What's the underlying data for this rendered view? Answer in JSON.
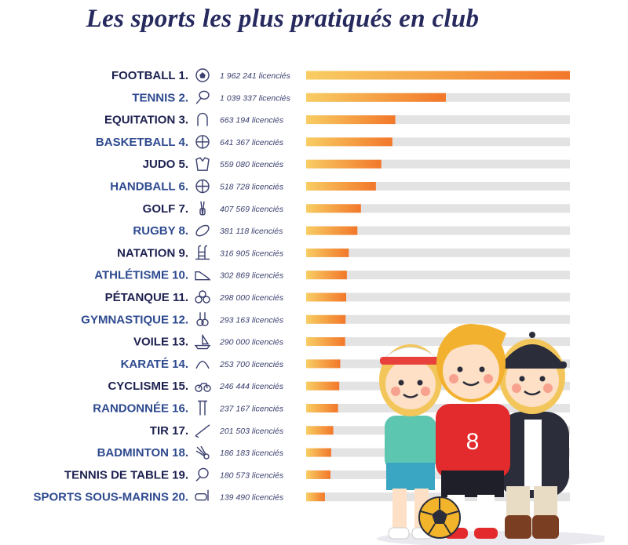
{
  "title": "Les sports les plus pratiqués en club",
  "colors": {
    "title": "#262a5e",
    "label_dark": "#1d2150",
    "label_blue": "#2e4a8f",
    "bar_track": "#e3e3e3",
    "bar_start": "#f8cd63",
    "bar_end": "#f2772a"
  },
  "chart_data": {
    "type": "bar",
    "orientation": "horizontal",
    "unit": "licenciés",
    "grid": false,
    "legend": "none",
    "xlim": [
      0,
      1962241
    ],
    "rows": [
      {
        "rank": "1.",
        "name": "FOOTBALL",
        "value": 1962241,
        "value_label": "1 962 241 licenciés",
        "icon": "football-icon",
        "style": "dark"
      },
      {
        "rank": "2.",
        "name": "TENNIS",
        "value": 1039337,
        "value_label": "1 039 337 licenciés",
        "icon": "tennis-racket-icon",
        "style": "blue"
      },
      {
        "rank": "3.",
        "name": "EQUITATION",
        "value": 663194,
        "value_label": "663 194 licenciés",
        "icon": "horseshoe-icon",
        "style": "dark"
      },
      {
        "rank": "4.",
        "name": "BASKETBALL",
        "value": 641367,
        "value_label": "641 367 licenciés",
        "icon": "basketball-icon",
        "style": "blue"
      },
      {
        "rank": "5.",
        "name": "JUDO",
        "value": 559080,
        "value_label": "559 080 licenciés",
        "icon": "judo-gi-icon",
        "style": "dark"
      },
      {
        "rank": "6.",
        "name": "HANDBALL",
        "value": 518728,
        "value_label": "518 728 licenciés",
        "icon": "handball-icon",
        "style": "blue"
      },
      {
        "rank": "7.",
        "name": "GOLF",
        "value": 407569,
        "value_label": "407 569 licenciés",
        "icon": "golf-bag-icon",
        "style": "dark"
      },
      {
        "rank": "8.",
        "name": "RUGBY",
        "value": 381118,
        "value_label": "381 118 licenciés",
        "icon": "rugby-ball-icon",
        "style": "blue"
      },
      {
        "rank": "9.",
        "name": "NATATION",
        "value": 316905,
        "value_label": "316 905 licenciés",
        "icon": "pool-ladder-icon",
        "style": "dark"
      },
      {
        "rank": "10.",
        "name": "ATHLÉTISME",
        "value": 302869,
        "value_label": "302 869 licenciés",
        "icon": "running-shoe-icon",
        "style": "blue"
      },
      {
        "rank": "11.",
        "name": "PÉTANQUE",
        "value": 298000,
        "value_label": "298 000 licenciés",
        "icon": "petanque-balls-icon",
        "style": "dark"
      },
      {
        "rank": "12.",
        "name": "GYMNASTIQUE",
        "value": 293163,
        "value_label": "293 163 licenciés",
        "icon": "gym-rings-icon",
        "style": "blue"
      },
      {
        "rank": "13.",
        "name": "VOILE",
        "value": 290000,
        "value_label": "290 000 licenciés",
        "icon": "sailboat-icon",
        "style": "dark"
      },
      {
        "rank": "14.",
        "name": "KARATÉ",
        "value": 253700,
        "value_label": "253 700 licenciés",
        "icon": "karate-belt-icon",
        "style": "blue"
      },
      {
        "rank": "15.",
        "name": "CYCLISME",
        "value": 246444,
        "value_label": "246 444 licenciés",
        "icon": "bicycle-icon",
        "style": "dark"
      },
      {
        "rank": "16.",
        "name": "RANDONNÉE",
        "value": 237167,
        "value_label": "237 167 licenciés",
        "icon": "hiking-poles-icon",
        "style": "blue"
      },
      {
        "rank": "17.",
        "name": "TIR",
        "value": 201503,
        "value_label": "201 503 licenciés",
        "icon": "rifle-icon",
        "style": "dark"
      },
      {
        "rank": "18.",
        "name": "BADMINTON",
        "value": 186183,
        "value_label": "186 183 licenciés",
        "icon": "shuttlecock-icon",
        "style": "blue"
      },
      {
        "rank": "19.",
        "name": "TENNIS DE TABLE",
        "value": 180573,
        "value_label": "180 573 licenciés",
        "icon": "ping-pong-paddle-icon",
        "style": "dark"
      },
      {
        "rank": "20.",
        "name": "SPORTS SOUS-MARINS",
        "value": 139490,
        "value_label": "139 490 licenciés",
        "icon": "diving-mask-icon",
        "style": "blue"
      }
    ]
  },
  "illustration": {
    "jersey_number": "8",
    "characters": [
      "tennis-player",
      "footballer",
      "rider"
    ]
  }
}
